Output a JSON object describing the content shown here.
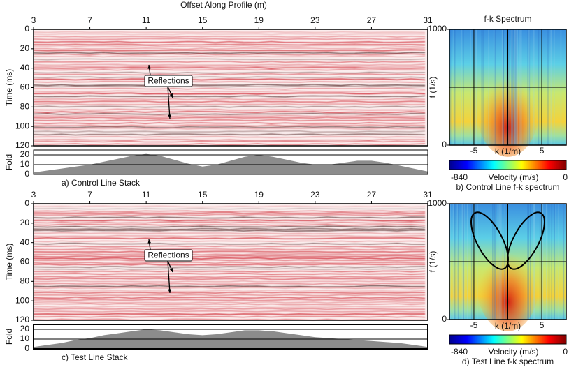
{
  "x_axis_title": "Offset Along Profile (m)",
  "stack_panels": [
    {
      "caption": "a) Control Line Stack",
      "time_label": "Time (ms)",
      "fold_label": "Fold",
      "annotation": "Reflections",
      "xlim": [
        3,
        31
      ],
      "xticks": [
        3,
        7,
        11,
        15,
        19,
        23,
        27,
        31
      ],
      "ylim": [
        0,
        120
      ],
      "yticks": [
        0,
        20,
        40,
        60,
        80,
        100,
        120
      ],
      "fold": {
        "x": [
          3,
          4,
          5,
          6,
          7,
          8,
          9,
          10,
          11,
          12,
          13,
          14,
          15,
          16,
          17,
          18,
          19,
          20,
          21,
          22,
          23,
          24,
          25,
          26,
          27,
          28,
          29,
          30,
          31
        ],
        "values": [
          2,
          4,
          6,
          8,
          10,
          13,
          16,
          19,
          21,
          19,
          15,
          11,
          8,
          10,
          14,
          18,
          20,
          18,
          15,
          12,
          10,
          10,
          12,
          14,
          14,
          12,
          9,
          6,
          3
        ],
        "ylim": [
          0,
          25
        ],
        "yticks": [
          0,
          10,
          20
        ]
      }
    },
    {
      "caption": "c) Test Line Stack",
      "time_label": "Time (ms)",
      "fold_label": "Fold",
      "annotation": "Reflections",
      "xlim": [
        3,
        31
      ],
      "xticks": [
        3,
        7,
        11,
        15,
        19,
        23,
        27,
        31
      ],
      "ylim": [
        0,
        120
      ],
      "yticks": [
        0,
        20,
        40,
        60,
        80,
        100,
        120
      ],
      "fold": {
        "x": [
          3,
          4,
          5,
          6,
          7,
          8,
          9,
          10,
          11,
          12,
          13,
          14,
          15,
          16,
          17,
          18,
          19,
          20,
          21,
          22,
          23,
          24,
          25,
          26,
          27,
          28,
          29,
          30,
          31
        ],
        "values": [
          2,
          4,
          6,
          9,
          11,
          14,
          16,
          18,
          20,
          19,
          17,
          15,
          14,
          15,
          17,
          19,
          19,
          18,
          16,
          14,
          12,
          11,
          10,
          9,
          8,
          7,
          6,
          4,
          2
        ],
        "ylim": [
          0,
          25
        ],
        "yticks": [
          0,
          10,
          20
        ]
      }
    }
  ],
  "fk_panels": [
    {
      "title": "f-k Spectrum",
      "caption": "b) Control Line f-k spectrum",
      "ylabel": "f (1/s)",
      "xlabel": "k (1/m)",
      "ylim": [
        0,
        1000
      ],
      "yticks": [
        0,
        1000
      ],
      "xlim": [
        -8.6,
        8.6
      ],
      "xticks": [
        -5,
        5
      ],
      "colorbar": {
        "label": "Velocity (m/s)",
        "lim": [
          -840,
          0
        ]
      }
    },
    {
      "caption": "d) Test Line f-k spectrum",
      "ylabel": "f (1/s)",
      "xlabel": "k (1/m)",
      "ylim": [
        0,
        1000
      ],
      "yticks": [
        0,
        1000
      ],
      "xlim": [
        -8.6,
        8.6
      ],
      "xticks": [
        -5,
        5
      ],
      "colorbar": {
        "label": "Velocity (m/s)",
        "lim": [
          -840,
          0
        ]
      }
    }
  ]
}
